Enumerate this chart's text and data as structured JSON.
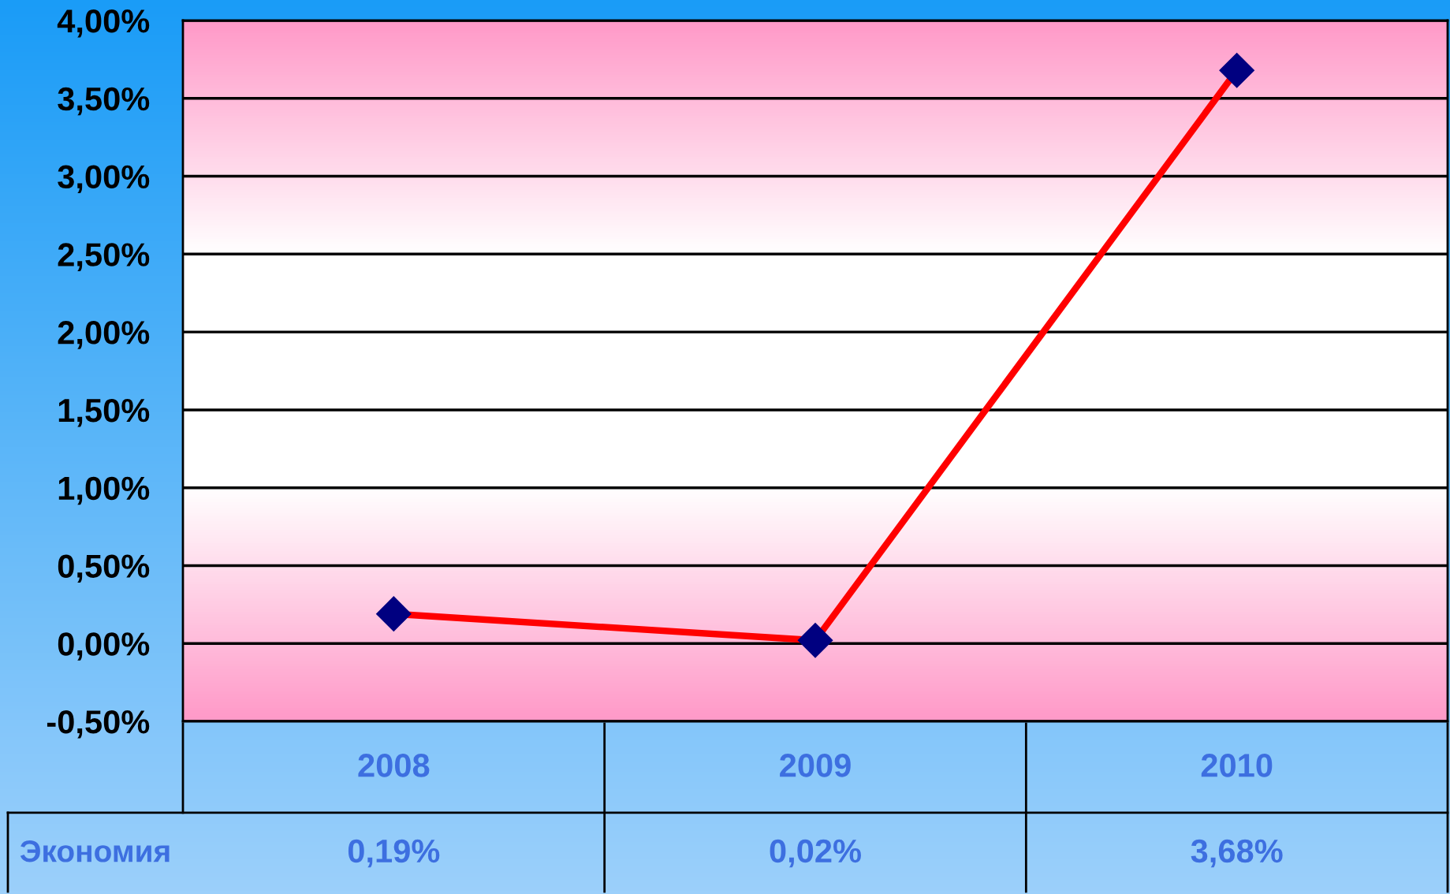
{
  "chart_data": {
    "type": "line",
    "categories": [
      "2008",
      "2009",
      "2010"
    ],
    "series": [
      {
        "name": "Экономия",
        "color": "#ff0000",
        "values": [
          0.19,
          0.02,
          3.68
        ],
        "value_labels": [
          "0,19%",
          "0,02%",
          "3,68%"
        ]
      }
    ],
    "ylim": [
      -0.5,
      4.0
    ],
    "yticks": [
      {
        "value": -0.5,
        "label": "-0,50%"
      },
      {
        "value": 0,
        "label": "0,00%"
      },
      {
        "value": 0.5,
        "label": "0,50%"
      },
      {
        "value": 1.0,
        "label": "1,00%"
      },
      {
        "value": 1.5,
        "label": "1,50%"
      },
      {
        "value": 2.0,
        "label": "2,00%"
      },
      {
        "value": 2.5,
        "label": "2,50%"
      },
      {
        "value": 3.0,
        "label": "3,00%"
      },
      {
        "value": 3.5,
        "label": "3,50%"
      },
      {
        "value": 4.0,
        "label": "4,00%"
      }
    ],
    "grid": "y",
    "marker": "diamond",
    "line_style": "solid",
    "legend": false
  }
}
